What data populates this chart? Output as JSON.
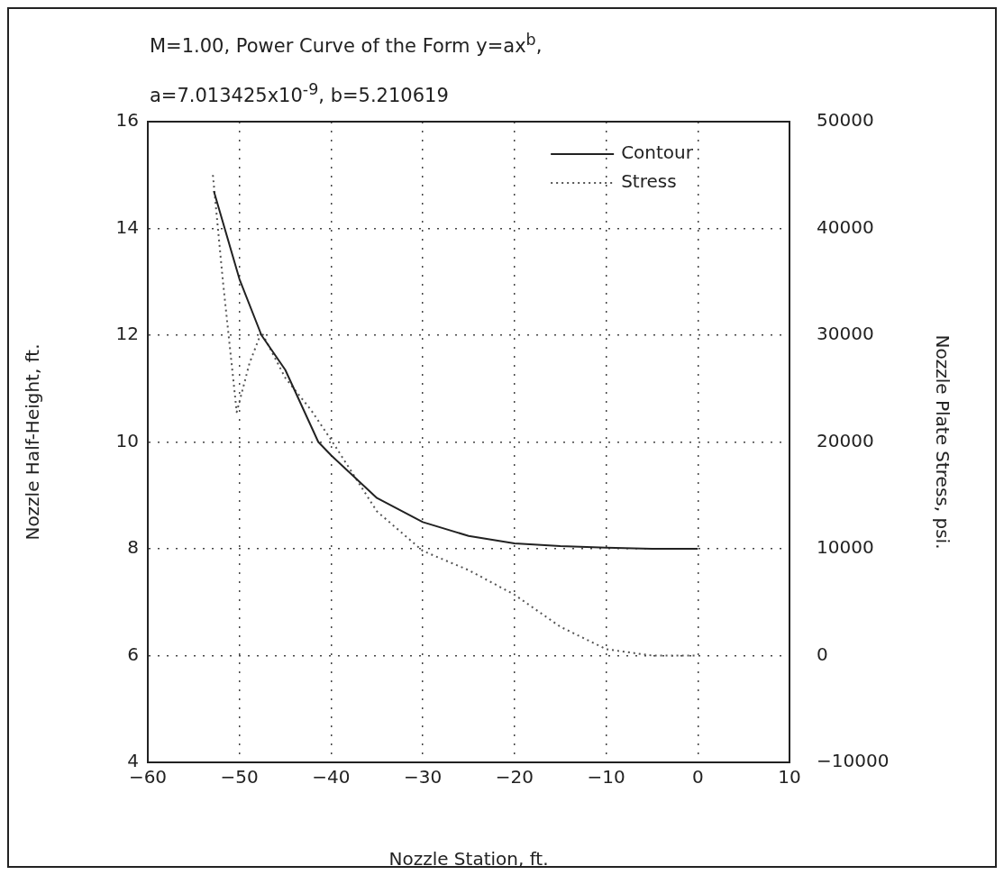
{
  "chart_data": {
    "type": "line",
    "title": "M=1.00, Power Curve of the Form y=ax$^{b}$,",
    "subtitle": "a=7.013425x10$^{-9}$, b=5.210619",
    "xlabel": "Nozzle Station, ft.",
    "ylabel": "Nozzle Half-Height, ft.",
    "y2label": "Nozzle Plate Stress, psi.",
    "xlim": [
      -60,
      10
    ],
    "xticks": [
      -60,
      -50,
      -40,
      -30,
      -20,
      -10,
      0,
      10
    ],
    "ylim": [
      4,
      16
    ],
    "yticks": [
      4,
      6,
      8,
      10,
      12,
      14,
      16
    ],
    "y2lim": [
      -10000,
      50000
    ],
    "y2ticks": [
      -10000,
      0,
      10000,
      20000,
      30000,
      40000,
      50000
    ],
    "grid": true,
    "legend": "top right",
    "marker": "none",
    "series": [
      {
        "name": "Contour",
        "color": "#222222",
        "line_style": "solid",
        "x": [
          -52.8,
          -50,
          -47.6,
          -45,
          -41.4,
          -40,
          -35,
          -30,
          -25,
          -20,
          -15,
          -10,
          -5,
          0
        ],
        "values": [
          14.7,
          13.05,
          12,
          11.35,
          10,
          9.75,
          8.95,
          8.5,
          8.24,
          8.1,
          8.05,
          8.02,
          8.0,
          8.0
        ]
      },
      {
        "name": "Stress",
        "color": "#555555",
        "line_style": "dotted",
        "axis": "y2",
        "x": [
          -52.9,
          -51.8,
          -50.3,
          -48.9,
          -47.6,
          -45,
          -42.2,
          -40,
          -35,
          -30,
          -25,
          -20,
          -15,
          -10,
          -5,
          0
        ],
        "values": [
          45000,
          35000,
          22800,
          27400,
          30300,
          26000,
          23000,
          20200,
          13500,
          9800,
          8000,
          5700,
          2700,
          600,
          0,
          0
        ]
      }
    ]
  }
}
